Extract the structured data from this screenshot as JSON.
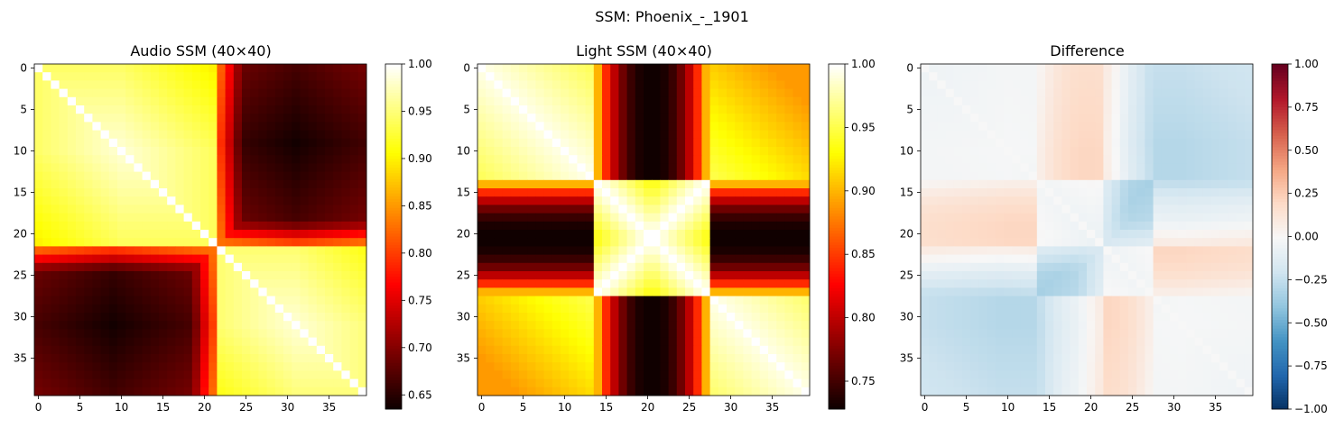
{
  "figure": {
    "suptitle": "SSM: Phoenix_-_1901"
  },
  "chart_data": [
    {
      "type": "heatmap",
      "title": "Audio SSM (40×40)",
      "size": 40,
      "colormap": "hot",
      "vmin": 0.635,
      "vmax": 1.0,
      "x_ticks": [
        0,
        5,
        10,
        15,
        20,
        25,
        30,
        35
      ],
      "y_ticks": [
        0,
        5,
        10,
        15,
        20,
        25,
        30,
        35
      ],
      "colorbar_ticks": [
        0.65,
        0.7,
        0.75,
        0.8,
        0.85,
        0.9,
        0.95,
        1.0
      ],
      "colorbar_tick_labels": [
        "0.65",
        "0.70",
        "0.75",
        "0.80",
        "0.85",
        "0.90",
        "0.95",
        "1.00"
      ],
      "segments": [
        [
          0,
          21
        ],
        [
          22,
          39
        ]
      ],
      "values_description_note": ""
    },
    {
      "type": "heatmap",
      "title": "Light SSM (40×40)",
      "size": 40,
      "colormap": "hot",
      "vmin": 0.728,
      "vmax": 1.0,
      "x_ticks": [
        0,
        5,
        10,
        15,
        20,
        25,
        30,
        35
      ],
      "y_ticks": [
        0,
        5,
        10,
        15,
        20,
        25,
        30,
        35
      ],
      "colorbar_ticks": [
        0.75,
        0.8,
        0.85,
        0.9,
        0.95,
        1.0
      ],
      "colorbar_tick_labels": [
        "0.75",
        "0.80",
        "0.85",
        "0.90",
        "0.95",
        "1.00"
      ],
      "band_center": 20.5,
      "band_halfwidth": 6.5
    },
    {
      "type": "heatmap",
      "title": "Difference",
      "size": 40,
      "colormap": "RdBu_r",
      "vmin": -1.0,
      "vmax": 1.0,
      "x_ticks": [
        0,
        5,
        10,
        15,
        20,
        25,
        30,
        35
      ],
      "y_ticks": [
        0,
        5,
        10,
        15,
        20,
        25,
        30,
        35
      ],
      "colorbar_ticks": [
        -1.0,
        -0.75,
        -0.5,
        -0.25,
        0.0,
        0.25,
        0.5,
        0.75,
        1.0
      ],
      "colorbar_tick_labels": [
        "−1.00",
        "−0.75",
        "−0.50",
        "−0.25",
        "0.00",
        "0.25",
        "0.50",
        "0.75",
        "1.00"
      ]
    }
  ]
}
